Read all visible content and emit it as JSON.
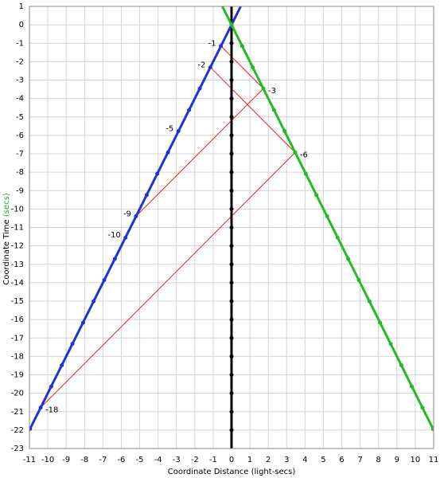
{
  "chart_data": {
    "type": "spacetime",
    "x_label": "Coordinate Distance (light-secs)",
    "y_label": "Coordinate Time",
    "y_label_unit": "(secs)",
    "xlim": [
      -11,
      11
    ],
    "ylim": [
      -23,
      1
    ],
    "xticks": [
      -11,
      -10,
      -9,
      -8,
      -7,
      -6,
      -5,
      -4,
      -3,
      -2,
      -1,
      0,
      1,
      2,
      3,
      4,
      5,
      6,
      7,
      8,
      9,
      10,
      11
    ],
    "yticks": [
      1,
      0,
      -1,
      -2,
      -3,
      -4,
      -5,
      -6,
      -7,
      -8,
      -9,
      -10,
      -11,
      -12,
      -13,
      -14,
      -15,
      -16,
      -17,
      -18,
      -19,
      -20,
      -21,
      -22,
      -23
    ],
    "grid": true,
    "series": [
      {
        "color": "#000000",
        "line_x": [
          0,
          0
        ],
        "line_y": [
          1,
          -23
        ],
        "x": [
          0,
          0,
          0,
          0,
          0,
          0,
          0,
          0,
          0,
          0,
          0,
          0,
          0,
          0,
          0,
          0,
          0,
          0,
          0,
          0,
          0,
          0,
          0
        ],
        "values": [
          0,
          -1,
          -2,
          -3,
          -4,
          -5,
          -6,
          -7,
          -8,
          -9,
          -10,
          -11,
          -12,
          -13,
          -14,
          -15,
          -16,
          -17,
          -18,
          -19,
          -20,
          -21,
          -22
        ]
      },
      {
        "color": "#1f35d0",
        "line_x": [
          -11,
          0.5
        ],
        "line_y": [
          -22,
          1
        ],
        "x": [
          0,
          -0.58,
          -1.15,
          -1.73,
          -2.31,
          -2.89,
          -3.46,
          -4.04,
          -4.62,
          -5.2,
          -5.77,
          -6.35,
          -6.93,
          -7.51,
          -8.08,
          -8.66,
          -9.24,
          -9.81,
          -10.39,
          -10.97
        ],
        "values": [
          0,
          -1.15,
          -2.31,
          -3.46,
          -4.62,
          -5.77,
          -6.93,
          -8.08,
          -9.24,
          -10.39,
          -11.55,
          -12.7,
          -13.86,
          -15.01,
          -16.17,
          -17.32,
          -18.48,
          -19.63,
          -20.78,
          -21.94
        ]
      },
      {
        "color": "#22bb22",
        "line_x": [
          -0.5,
          11
        ],
        "line_y": [
          1,
          -22
        ],
        "x": [
          0,
          0.58,
          1.15,
          1.73,
          2.31,
          2.89,
          3.46,
          4.04,
          4.62,
          5.2,
          5.77,
          6.35,
          6.93,
          7.51,
          8.08,
          8.66,
          9.24,
          9.81,
          10.39,
          10.97
        ],
        "values": [
          0,
          -1.15,
          -2.31,
          -3.46,
          -4.62,
          -5.77,
          -6.93,
          -8.08,
          -9.24,
          -10.39,
          -11.55,
          -12.7,
          -13.86,
          -15.01,
          -16.17,
          -17.32,
          -18.48,
          -19.63,
          -20.78,
          -21.94
        ]
      }
    ],
    "signals": {
      "color": "#ee2222",
      "lines": [
        {
          "x": [
            -0.58,
            1.73
          ],
          "y": [
            -1.15,
            -3.46
          ]
        },
        {
          "x": [
            1.73,
            -5.2
          ],
          "y": [
            -3.46,
            -10.39
          ]
        },
        {
          "x": [
            -1.15,
            3.46
          ],
          "y": [
            -2.31,
            -6.93
          ]
        },
        {
          "x": [
            3.46,
            -10.39
          ],
          "y": [
            -6.93,
            -20.78
          ]
        }
      ]
    },
    "annotations": [
      {
        "text": "-1",
        "x": -0.58,
        "y": -1.15
      },
      {
        "text": "-2",
        "x": -1.15,
        "y": -2.31
      },
      {
        "text": "-5",
        "x": -2.89,
        "y": -5.77
      },
      {
        "text": "-9",
        "x": -5.2,
        "y": -10.39
      },
      {
        "text": "-10",
        "x": -5.77,
        "y": -11.55
      },
      {
        "text": "-18",
        "x": -10.39,
        "y": -20.78
      },
      {
        "text": "-3",
        "x": 1.73,
        "y": -3.46
      },
      {
        "text": "-6",
        "x": 3.46,
        "y": -6.93
      }
    ]
  }
}
